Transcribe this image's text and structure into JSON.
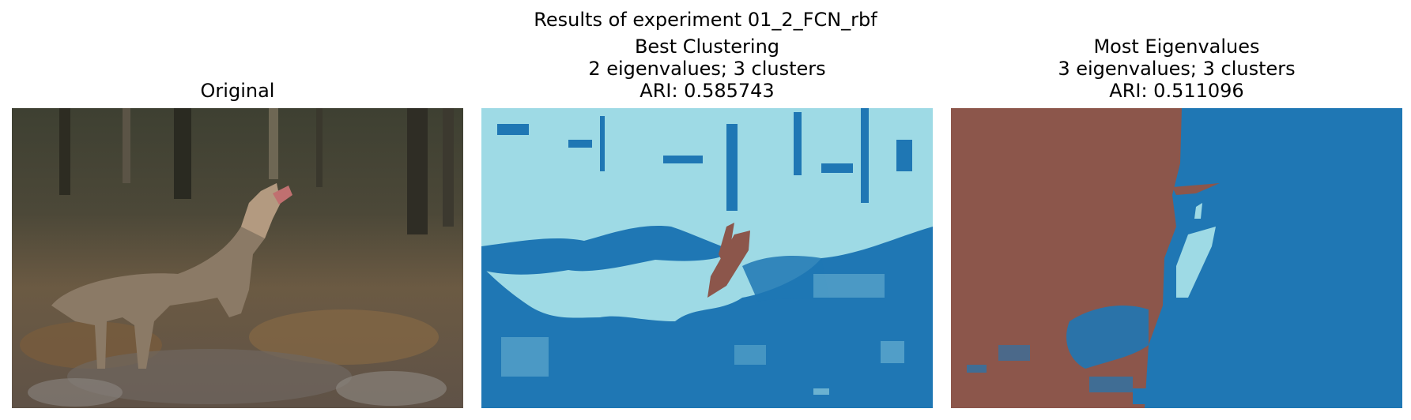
{
  "figure": {
    "suptitle": "Results of experiment 01_2_FCN_rbf"
  },
  "panels": [
    {
      "title_lines": [
        "Original"
      ]
    },
    {
      "title_lines": [
        "Best Clustering",
        "2 eigenvalues; 3 clusters",
        "ARI: 0.585743"
      ]
    },
    {
      "title_lines": [
        "Most Eigenvalues",
        "3 eigenvalues; 3 clusters",
        "ARI: 0.511096"
      ]
    }
  ],
  "colors": {
    "cluster_dark_blue": "#1f77b4",
    "cluster_light_blue": "#9edae5",
    "cluster_brown": "#8c564b"
  }
}
